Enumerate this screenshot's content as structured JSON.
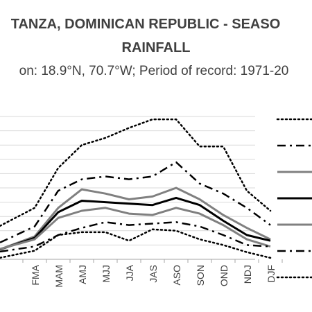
{
  "chart_data": {
    "type": "line",
    "title_line1": "TANZA, DOMINICAN REPUBLIC - SEASO",
    "title_line2": "RAINFALL",
    "subtitle": "on: 18.9°N, 70.7°W; Period of record: 1971-20",
    "categories": [
      "FMA",
      "MAM",
      "AMJ",
      "MJJ",
      "JJA",
      "JAS",
      "ASO",
      "SON",
      "OND",
      "NDJ",
      "DJF"
    ],
    "ylim": [
      0,
      10
    ],
    "grid": true,
    "legend_placement": "right",
    "series": [
      {
        "style": "dotted",
        "color": "#000000",
        "width": 2.5,
        "values": [
          3.6,
          6.4,
          8.0,
          8.5,
          9.2,
          9.8,
          9.8,
          7.9,
          7.9,
          4.8,
          3.4
        ]
      },
      {
        "style": "dashdot",
        "color": "#000000",
        "width": 2.5,
        "values": [
          2.3,
          4.8,
          5.6,
          5.8,
          5.6,
          5.8,
          6.8,
          5.3,
          4.6,
          3.6,
          2.4
        ]
      },
      {
        "style": "solid",
        "color": "#808080",
        "width": 3,
        "values": [
          1.6,
          3.6,
          4.9,
          4.6,
          4.2,
          4.4,
          5.0,
          4.2,
          3.1,
          2.2,
          1.4
        ]
      },
      {
        "style": "solid",
        "color": "#000000",
        "width": 3,
        "values": [
          1.5,
          3.3,
          4.1,
          4.0,
          3.9,
          3.8,
          4.3,
          3.8,
          2.7,
          1.7,
          1.3
        ]
      },
      {
        "style": "solid",
        "color": "#808080",
        "width": 3,
        "values": [
          1.4,
          2.9,
          3.4,
          3.6,
          3.2,
          3.1,
          3.6,
          3.2,
          2.4,
          1.4,
          0.9
        ]
      },
      {
        "style": "dashdot",
        "color": "#000000",
        "width": 2.5,
        "values": [
          0.9,
          1.7,
          2.2,
          2.6,
          2.4,
          2.5,
          2.6,
          2.3,
          1.7,
          1.0,
          0.9
        ]
      },
      {
        "style": "dotted",
        "color": "#000000",
        "width": 2.5,
        "values": [
          0.6,
          1.7,
          1.9,
          1.9,
          1.3,
          2.1,
          2.0,
          1.4,
          1.0,
          0.5,
          0.1
        ]
      }
    ]
  }
}
